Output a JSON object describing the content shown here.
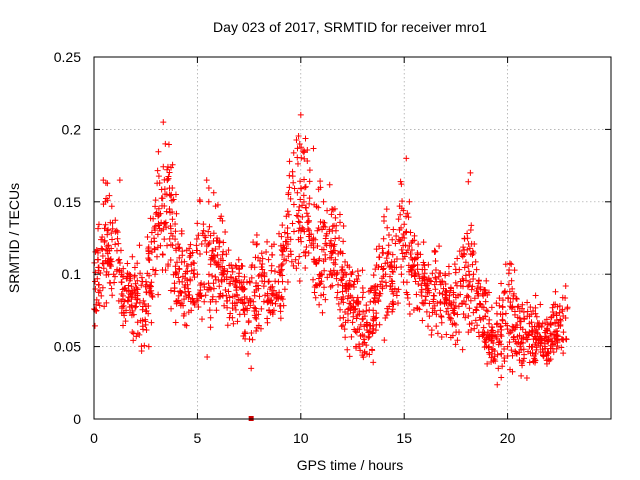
{
  "chart_data": {
    "type": "scatter",
    "title": "Day 023 of 2017, SRMTID for receiver mro1",
    "xlabel": "GPS time / hours",
    "ylabel": "SRMTID / TECUs",
    "xlim": [
      0,
      25
    ],
    "ylim": [
      0,
      0.25
    ],
    "x_ticks": [
      0,
      5,
      10,
      15,
      20
    ],
    "x_tick_labels": [
      "0",
      "5",
      "10",
      "15",
      "20"
    ],
    "y_ticks": [
      0,
      0.05,
      0.1,
      0.15,
      0.2,
      0.25
    ],
    "y_tick_labels": [
      "0",
      "0.05",
      "0.1",
      "0.15",
      "0.2",
      "0.25"
    ],
    "grid": true,
    "marker": "+",
    "colors": {
      "points": "#ff0000",
      "grid": "#a0a0a0",
      "axes": "#000000",
      "outlier": "#cc0000"
    },
    "outliers": [
      {
        "x": 7.6,
        "y": 0.0
      }
    ],
    "envelope": {
      "x": [
        0,
        0.5,
        1,
        1.5,
        2,
        2.5,
        3,
        3.5,
        4,
        4.5,
        5,
        5.5,
        6,
        6.5,
        7,
        7.5,
        8,
        8.5,
        9,
        9.5,
        10,
        10.5,
        11,
        11.5,
        12,
        12.5,
        13,
        13.5,
        14,
        14.5,
        15,
        15.5,
        16,
        16.5,
        17,
        17.5,
        18,
        18.5,
        19,
        19.5,
        20,
        20.5,
        21,
        21.5,
        22,
        22.5,
        22.9
      ],
      "min": [
        0.045,
        0.06,
        0.06,
        0.05,
        0.045,
        0.03,
        0.07,
        0.07,
        0.05,
        0.045,
        0.05,
        0.03,
        0.05,
        0.055,
        0.06,
        0.025,
        0.04,
        0.05,
        0.05,
        0.065,
        0.08,
        0.06,
        0.05,
        0.07,
        0.05,
        0.035,
        0.025,
        0.03,
        0.05,
        0.05,
        0.06,
        0.05,
        0.05,
        0.05,
        0.045,
        0.035,
        0.04,
        0.04,
        0.03,
        0.02,
        0.02,
        0.02,
        0.02,
        0.025,
        0.025,
        0.03,
        0.035
      ],
      "max": [
        0.13,
        0.19,
        0.17,
        0.12,
        0.12,
        0.13,
        0.2,
        0.22,
        0.17,
        0.14,
        0.16,
        0.18,
        0.16,
        0.13,
        0.12,
        0.13,
        0.14,
        0.13,
        0.14,
        0.2,
        0.225,
        0.2,
        0.17,
        0.17,
        0.14,
        0.12,
        0.11,
        0.11,
        0.16,
        0.14,
        0.2,
        0.16,
        0.13,
        0.13,
        0.12,
        0.12,
        0.19,
        0.13,
        0.1,
        0.1,
        0.14,
        0.1,
        0.1,
        0.09,
        0.08,
        0.1,
        0.1
      ]
    },
    "series": [
      {
        "name": "SRMTID",
        "x": [
          0.05,
          0.2,
          0.35,
          0.45,
          0.55,
          0.7,
          0.85,
          0.95,
          1.1,
          1.25,
          1.4,
          1.55,
          1.7,
          1.85,
          2.05,
          2.2,
          2.35,
          2.5,
          2.65,
          2.8,
          2.95,
          3.1,
          3.25,
          3.35,
          3.45,
          3.55,
          3.65,
          3.8,
          3.95,
          4.1,
          4.25,
          4.4,
          4.55,
          4.7,
          4.85,
          5.0,
          5.15,
          5.3,
          5.45,
          5.55,
          5.65,
          5.8,
          5.95,
          6.1,
          6.25,
          6.4,
          6.55,
          6.7,
          6.85,
          7.0,
          7.15,
          7.3,
          7.45,
          7.6,
          7.8,
          7.95,
          8.1,
          8.25,
          8.4,
          8.55,
          8.7,
          8.85,
          9.0,
          9.15,
          9.3,
          9.45,
          9.6,
          9.75,
          9.9,
          10.0,
          10.1,
          10.2,
          10.35,
          10.5,
          10.65,
          10.8,
          10.95,
          11.1,
          11.25,
          11.4,
          11.55,
          11.7,
          11.85,
          12.0,
          12.15,
          12.3,
          12.45,
          12.6,
          12.75,
          12.9,
          13.05,
          13.2,
          13.35,
          13.5,
          13.65,
          13.8,
          13.95,
          14.1,
          14.25,
          14.4,
          14.55,
          14.7,
          14.85,
          15.0,
          15.1,
          15.25,
          15.4,
          15.55,
          15.7,
          15.85,
          16.0,
          16.15,
          16.3,
          16.45,
          16.6,
          16.75,
          16.9,
          17.05,
          17.2,
          17.35,
          17.5,
          17.65,
          17.8,
          17.95,
          18.1,
          18.2,
          18.35,
          18.5,
          18.65,
          18.8,
          18.95,
          19.1,
          19.25,
          19.4,
          19.55,
          19.7,
          19.85,
          20.0,
          20.15,
          20.3,
          20.45,
          20.6,
          20.75,
          20.9,
          21.05,
          21.2,
          21.35,
          21.5,
          21.65,
          21.8,
          21.95,
          22.1,
          22.25,
          22.4,
          22.55,
          22.7,
          22.85
        ],
        "y": [
          0.095,
          0.11,
          0.085,
          0.165,
          0.15,
          0.12,
          0.09,
          0.1,
          0.13,
          0.165,
          0.085,
          0.075,
          0.1,
          0.06,
          0.08,
          0.12,
          0.095,
          0.065,
          0.05,
          0.085,
          0.1,
          0.14,
          0.13,
          0.205,
          0.19,
          0.165,
          0.145,
          0.12,
          0.1,
          0.085,
          0.08,
          0.065,
          0.09,
          0.075,
          0.08,
          0.1,
          0.085,
          0.13,
          0.165,
          0.15,
          0.11,
          0.09,
          0.125,
          0.105,
          0.1,
          0.085,
          0.07,
          0.08,
          0.095,
          0.11,
          0.09,
          0.06,
          0.045,
          0.035,
          0.07,
          0.09,
          0.105,
          0.095,
          0.085,
          0.08,
          0.075,
          0.085,
          0.1,
          0.12,
          0.14,
          0.16,
          0.135,
          0.11,
          0.13,
          0.21,
          0.185,
          0.16,
          0.14,
          0.12,
          0.11,
          0.13,
          0.16,
          0.15,
          0.12,
          0.1,
          0.115,
          0.13,
          0.125,
          0.105,
          0.09,
          0.085,
          0.1,
          0.095,
          0.08,
          0.065,
          0.055,
          0.045,
          0.06,
          0.075,
          0.07,
          0.085,
          0.09,
          0.1,
          0.12,
          0.105,
          0.09,
          0.08,
          0.105,
          0.125,
          0.18,
          0.15,
          0.11,
          0.095,
          0.1,
          0.085,
          0.08,
          0.09,
          0.095,
          0.085,
          0.08,
          0.075,
          0.09,
          0.08,
          0.07,
          0.075,
          0.065,
          0.06,
          0.08,
          0.07,
          0.06,
          0.17,
          0.1,
          0.075,
          0.07,
          0.06,
          0.055,
          0.05,
          0.045,
          0.04,
          0.035,
          0.045,
          0.04,
          0.05,
          0.06,
          0.055,
          0.045,
          0.05,
          0.04,
          0.055,
          0.06,
          0.05,
          0.045,
          0.065,
          0.055,
          0.05,
          0.045,
          0.07,
          0.06,
          0.055,
          0.065,
          0.06,
          0.055
        ]
      }
    ]
  }
}
